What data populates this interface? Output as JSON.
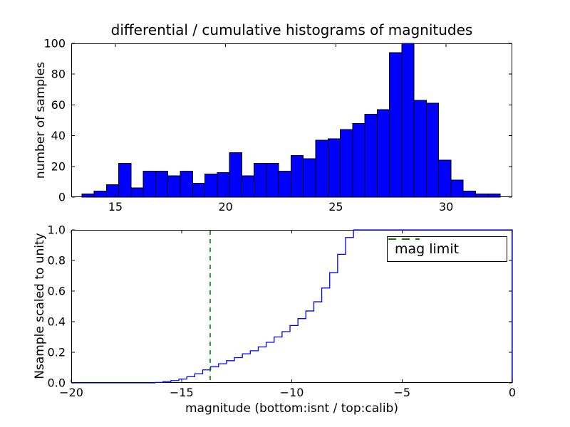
{
  "figure": {
    "title": "differential / cumulative histograms of magnitudes",
    "background": "#ffffff",
    "spine_color": "#000000"
  },
  "chart_data": [
    {
      "id": "top-differential-histogram",
      "type": "bar",
      "title": "differential / cumulative histograms of magnitudes",
      "ylabel": "number of samples",
      "xlim": [
        13.0,
        33.0
      ],
      "ylim": [
        0,
        100
      ],
      "xticks": [
        15,
        20,
        25,
        30
      ],
      "xtick_labels": [
        "15",
        "20",
        "25",
        "30"
      ],
      "yticks": [
        0,
        20,
        40,
        60,
        80,
        100
      ],
      "ytick_labels": [
        "0",
        "20",
        "40",
        "60",
        "80",
        "100"
      ],
      "bin_start": 13.48,
      "bin_width": 0.558,
      "values": [
        2,
        4,
        8,
        22,
        6,
        17,
        17,
        14,
        17,
        9,
        15,
        16,
        29,
        14,
        22,
        22,
        17,
        27,
        25,
        37,
        38,
        44,
        48,
        54,
        57,
        94,
        100,
        63,
        61,
        24,
        11,
        4,
        2,
        2
      ],
      "bar_color": "#0000ff",
      "bar_edge_color": "#000000",
      "grid": false
    },
    {
      "id": "bottom-cumulative-histogram",
      "type": "line",
      "subtype": "cumulative-step",
      "ylabel": "Nsample scaled to unity",
      "xlabel": "magnitude (bottom:isnt / top:calib)",
      "xlim": [
        -20,
        0
      ],
      "ylim": [
        0.0,
        1.0
      ],
      "xticks": [
        -20,
        -15,
        -10,
        -5,
        0
      ],
      "xtick_labels": [
        "−20",
        "−15",
        "−10",
        "−5",
        "0"
      ],
      "yticks": [
        0.0,
        0.2,
        0.4,
        0.6,
        0.8,
        1.0
      ],
      "ytick_labels": [
        "0.0",
        "0.2",
        "0.4",
        "0.6",
        "0.8",
        "1.0"
      ],
      "line_color": "#0000ff",
      "step_start": -16.2,
      "step_width": 0.36,
      "cumulative_levels": [
        0.003,
        0.008,
        0.015,
        0.025,
        0.04,
        0.06,
        0.085,
        0.105,
        0.125,
        0.145,
        0.165,
        0.19,
        0.21,
        0.235,
        0.265,
        0.3,
        0.335,
        0.375,
        0.42,
        0.47,
        0.53,
        0.62,
        0.72,
        0.84,
        0.95,
        1.0
      ],
      "closes_at_right_edge": true,
      "mag_limit_line": {
        "x": -13.7,
        "color": "#008000",
        "style": "dashed"
      },
      "legend": {
        "label": "mag limit",
        "position": "upper right",
        "line_color": "#008000"
      },
      "grid": false
    }
  ]
}
